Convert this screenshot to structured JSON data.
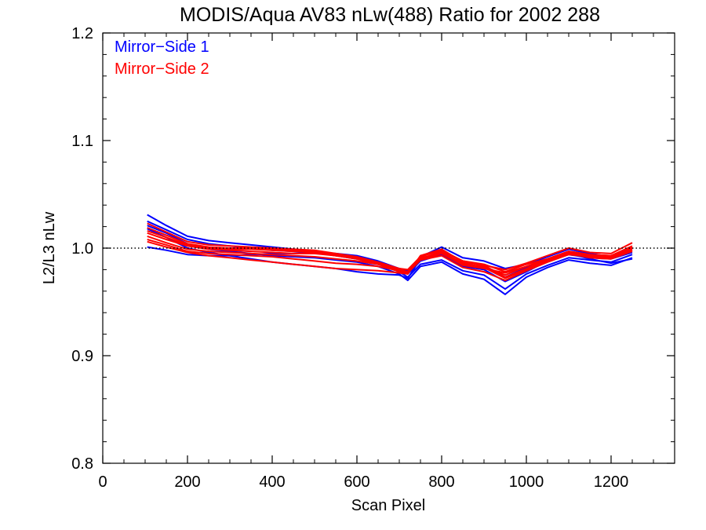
{
  "chart_data": {
    "type": "line",
    "title": "MODIS/Aqua AV83 nLw(488) Ratio for 2002 288",
    "xlabel": "Scan Pixel",
    "ylabel": "L2/L3 nLw",
    "xlim": [
      0,
      1350
    ],
    "ylim": [
      0.8,
      1.2
    ],
    "x_ticks": [
      0,
      200,
      400,
      600,
      800,
      1000,
      1200
    ],
    "y_ticks": [
      0.8,
      0.9,
      1.0,
      1.1,
      1.2
    ],
    "x_tick_labels": [
      "0",
      "200",
      "400",
      "600",
      "800",
      "1000",
      "1200"
    ],
    "y_tick_labels": [
      "0.8",
      "0.9",
      "1.0",
      "1.1",
      "1.2"
    ],
    "reference_line": {
      "y": 1.0,
      "style": "dotted"
    },
    "legend": {
      "placement": "top-left",
      "entries": [
        {
          "label": "Mirror−Side 1",
          "color": "#0000ff"
        },
        {
          "label": "Mirror−Side 2",
          "color": "#ff0000"
        }
      ]
    },
    "x": [
      105,
      150,
      200,
      250,
      300,
      350,
      400,
      450,
      500,
      550,
      600,
      650,
      700,
      720,
      750,
      800,
      850,
      900,
      950,
      1000,
      1050,
      1100,
      1150,
      1200,
      1250
    ],
    "series": [
      {
        "group": 1,
        "color": "#0000ff",
        "values": [
          1.031,
          1.021,
          1.011,
          1.007,
          1.005,
          1.003,
          1.001,
          0.999,
          0.997,
          0.994,
          0.991,
          0.986,
          0.979,
          0.976,
          0.988,
          0.994,
          0.986,
          0.982,
          0.973,
          0.982,
          0.988,
          0.994,
          0.991,
          0.99,
          0.996
        ]
      },
      {
        "group": 1,
        "color": "#0000ff",
        "values": [
          1.025,
          1.017,
          1.008,
          1.004,
          1.002,
          1.0,
          0.998,
          0.997,
          0.996,
          0.993,
          0.99,
          0.985,
          0.978,
          0.973,
          0.985,
          0.989,
          0.979,
          0.975,
          0.962,
          0.976,
          0.984,
          0.991,
          0.989,
          0.987,
          0.994
        ]
      },
      {
        "group": 1,
        "color": "#0000ff",
        "values": [
          1.021,
          1.014,
          1.004,
          0.999,
          0.997,
          0.995,
          0.993,
          0.992,
          0.991,
          0.989,
          0.987,
          0.983,
          0.976,
          0.97,
          0.983,
          0.987,
          0.976,
          0.971,
          0.957,
          0.973,
          0.982,
          0.989,
          0.986,
          0.984,
          0.991
        ]
      },
      {
        "group": 1,
        "color": "#0000ff",
        "values": [
          1.018,
          1.01,
          1.0,
          0.996,
          0.993,
          0.99,
          0.987,
          0.985,
          0.983,
          0.981,
          0.978,
          0.976,
          0.975,
          0.972,
          0.99,
          0.994,
          0.983,
          0.98,
          0.969,
          0.978,
          0.988,
          0.995,
          0.99,
          0.986,
          0.99
        ]
      },
      {
        "group": 1,
        "color": "#0000ff",
        "values": [
          1.001,
          0.998,
          0.994,
          0.993,
          0.993,
          0.994,
          0.995,
          0.995,
          0.996,
          0.995,
          0.993,
          0.988,
          0.981,
          0.979,
          0.992,
          1.001,
          0.991,
          0.988,
          0.981,
          0.985,
          0.992,
          0.999,
          0.995,
          0.992,
          0.999
        ]
      },
      {
        "group": 2,
        "color": "#ff0000",
        "values": [
          1.023,
          1.015,
          1.006,
          1.003,
          1.002,
          1.001,
          1.0,
          0.999,
          0.998,
          0.995,
          0.992,
          0.987,
          0.98,
          0.977,
          0.989,
          0.995,
          0.985,
          0.983,
          0.975,
          0.983,
          0.989,
          0.996,
          0.993,
          0.992,
          1.0
        ]
      },
      {
        "group": 2,
        "color": "#ff0000",
        "values": [
          1.019,
          1.012,
          1.004,
          1.001,
          1.0,
          1.0,
          0.999,
          0.998,
          0.997,
          0.994,
          0.991,
          0.986,
          0.979,
          0.978,
          0.99,
          0.997,
          0.988,
          0.985,
          0.978,
          0.985,
          0.99,
          0.997,
          0.994,
          0.993,
          1.001
        ]
      },
      {
        "group": 2,
        "color": "#ff0000",
        "values": [
          1.016,
          1.01,
          1.003,
          1.0,
          0.999,
          0.999,
          0.998,
          0.997,
          0.996,
          0.993,
          0.99,
          0.985,
          0.978,
          0.977,
          0.989,
          0.993,
          0.982,
          0.978,
          0.97,
          0.979,
          0.987,
          0.994,
          0.992,
          0.991,
          0.998
        ]
      },
      {
        "group": 2,
        "color": "#ff0000",
        "values": [
          1.014,
          1.008,
          1.002,
          0.999,
          0.998,
          0.997,
          0.996,
          0.995,
          0.995,
          0.993,
          0.991,
          0.987,
          0.981,
          0.98,
          0.992,
          0.998,
          0.988,
          0.984,
          0.973,
          0.981,
          0.989,
          0.996,
          0.993,
          0.992,
          0.999
        ]
      },
      {
        "group": 2,
        "color": "#ff0000",
        "values": [
          1.011,
          1.005,
          0.999,
          0.997,
          0.996,
          0.995,
          0.994,
          0.993,
          0.992,
          0.99,
          0.988,
          0.985,
          0.98,
          0.978,
          0.99,
          0.996,
          0.986,
          0.982,
          0.972,
          0.98,
          0.988,
          0.995,
          0.991,
          0.99,
          0.997
        ]
      },
      {
        "group": 2,
        "color": "#ff0000",
        "values": [
          1.008,
          1.003,
          0.997,
          0.995,
          0.994,
          0.993,
          0.992,
          0.99,
          0.988,
          0.986,
          0.985,
          0.983,
          0.979,
          0.977,
          0.991,
          0.995,
          0.984,
          0.981,
          0.977,
          0.983,
          0.99,
          0.997,
          0.994,
          0.993,
          1.002
        ]
      },
      {
        "group": 2,
        "color": "#ff0000",
        "values": [
          1.006,
          1.001,
          0.996,
          0.993,
          0.991,
          0.989,
          0.987,
          0.985,
          0.983,
          0.981,
          0.98,
          0.979,
          0.977,
          0.976,
          0.993,
          0.999,
          0.987,
          0.984,
          0.98,
          0.986,
          0.993,
          1.0,
          0.996,
          0.995,
          1.005
        ]
      }
    ]
  }
}
